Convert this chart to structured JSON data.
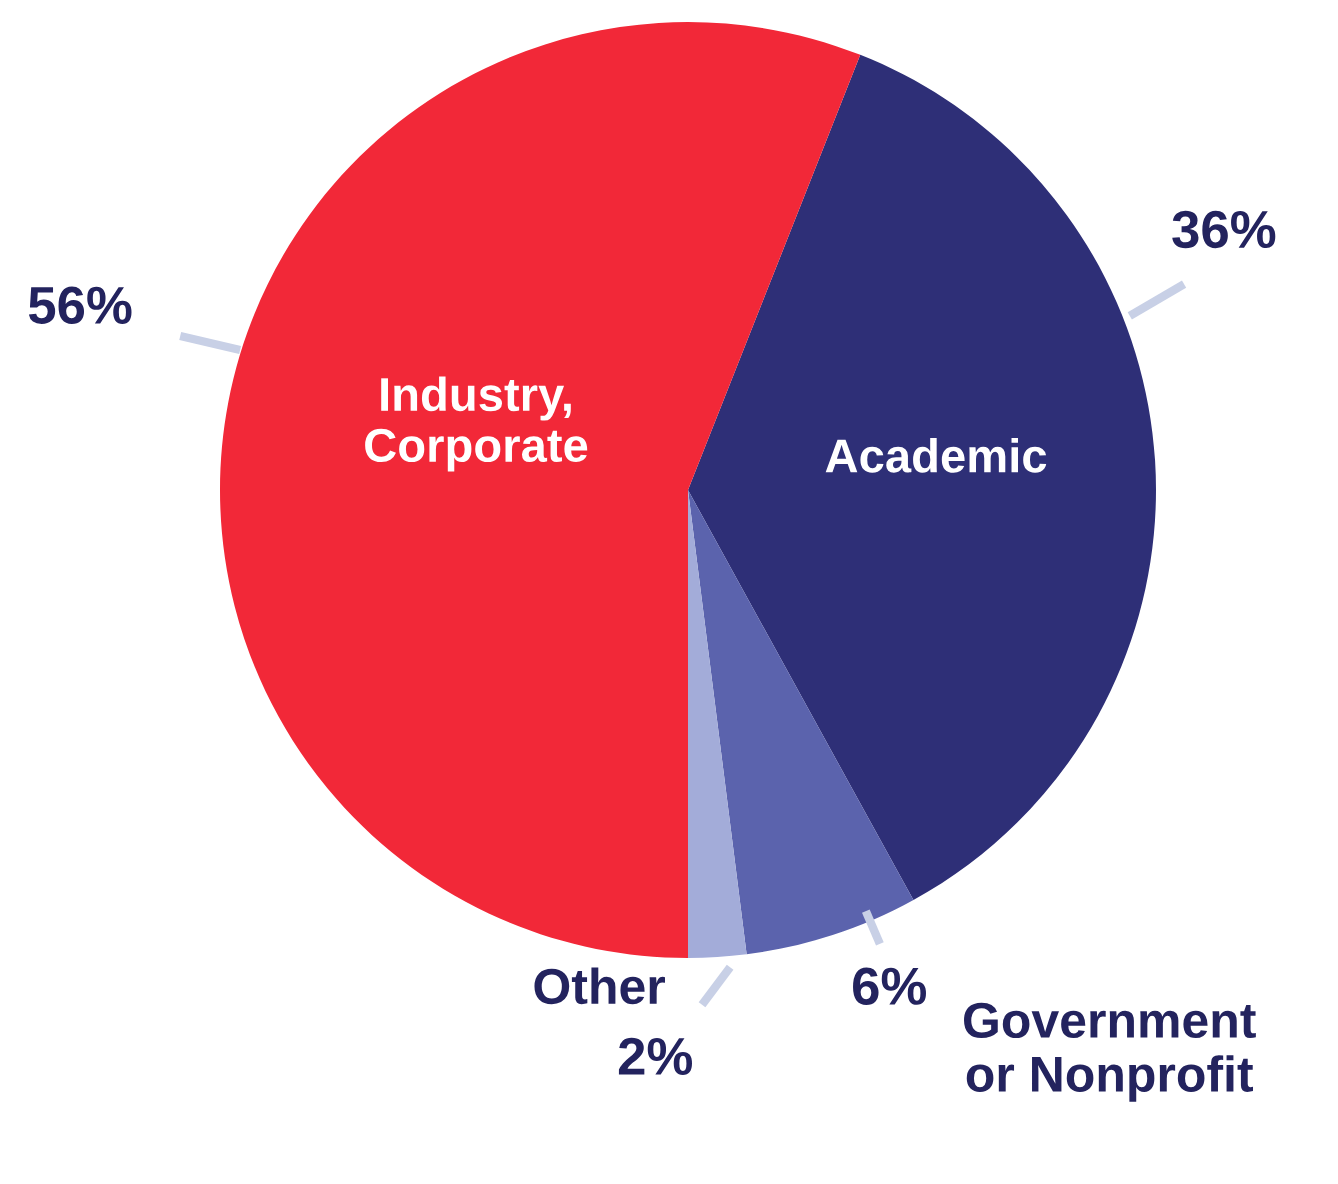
{
  "chart_data": {
    "type": "pie",
    "categories": [
      "Academic",
      "Government\nor Nonprofit",
      "Other",
      "Industry,\nCorporate"
    ],
    "values": [
      36,
      6,
      2,
      56
    ],
    "colors": [
      "#2e2f77",
      "#5b63ad",
      "#a3acd9",
      "#f22838"
    ],
    "value_labels": [
      "36%",
      "6%",
      "2%",
      "56%"
    ],
    "legend": false
  }
}
